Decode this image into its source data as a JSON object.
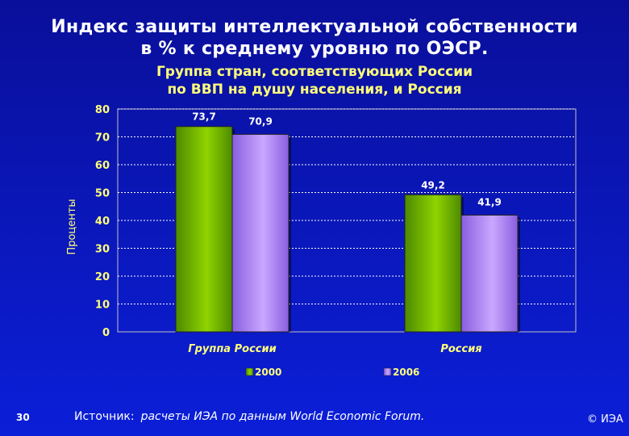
{
  "slide": {
    "title_line1": "Индекс защиты интеллектуальной собственности",
    "title_line2": "в % к среднему уровню по ОЭСР.",
    "subtitle_line1": "Группа стран, соответствующих России",
    "subtitle_line2": "по ВВП на душу населения, и Россия",
    "source_label": "Источник:",
    "source_text": "расчеты ИЭА по данным World Economic Forum.",
    "page_number": "30",
    "copyright": "© ИЭА"
  },
  "colors": {
    "series_2000": "#8fd400",
    "series_2006": "#c9a8ff",
    "title": "#ffffff",
    "subtitle": "#ffff7a",
    "axis_text": "#ffff7a",
    "gridline": "#ffffff"
  },
  "chart_data": {
    "type": "bar",
    "title": "",
    "xlabel": "",
    "ylabel": "Проценты",
    "categories": [
      "Группа России",
      "Россия"
    ],
    "series": [
      {
        "name": "2000",
        "values": [
          73.7,
          49.2
        ],
        "labels": [
          "73,7",
          "49,2"
        ]
      },
      {
        "name": "2006",
        "values": [
          70.9,
          41.9
        ],
        "labels": [
          "70,9",
          "41,9"
        ]
      }
    ],
    "ylim": [
      0,
      80
    ],
    "yticks": [
      0,
      10,
      20,
      30,
      40,
      50,
      60,
      70,
      80
    ],
    "grid": true,
    "legend": "bottom"
  }
}
